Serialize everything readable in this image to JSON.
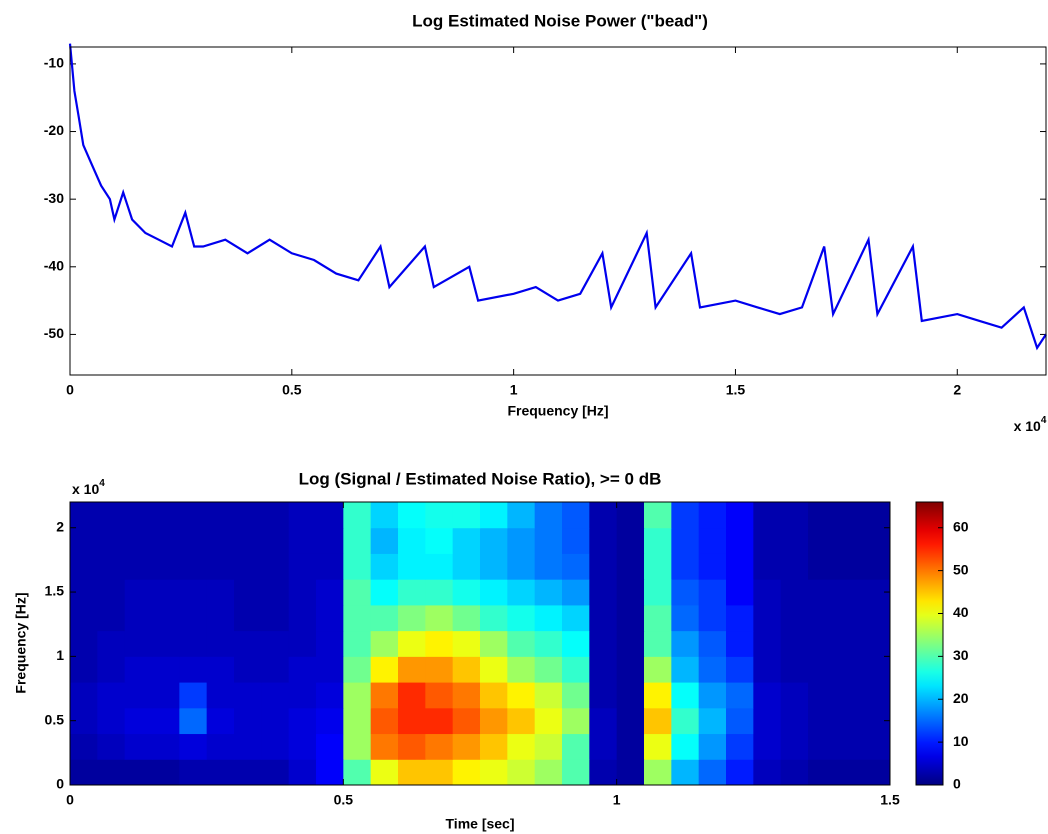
{
  "chart_data": [
    {
      "type": "line",
      "title": "Log Estimated Noise Power (\"bead\")",
      "xlabel": "Frequency [Hz]",
      "x_scale_label": {
        "base": "x 10",
        "exponent": "4"
      },
      "color": "#0000ee",
      "x": [
        0,
        0.01,
        0.02,
        0.03,
        0.05,
        0.07,
        0.09,
        0.1,
        0.12,
        0.14,
        0.17,
        0.2,
        0.23,
        0.26,
        0.28,
        0.3,
        0.35,
        0.4,
        0.45,
        0.5,
        0.55,
        0.6,
        0.65,
        0.7,
        0.72,
        0.8,
        0.82,
        0.9,
        0.92,
        1.0,
        1.05,
        1.1,
        1.15,
        1.2,
        1.22,
        1.3,
        1.32,
        1.4,
        1.42,
        1.5,
        1.55,
        1.6,
        1.65,
        1.7,
        1.72,
        1.8,
        1.82,
        1.9,
        1.92,
        2.0,
        2.05,
        2.1,
        2.15,
        2.18,
        2.2
      ],
      "values": [
        -7,
        -14,
        -18,
        -22,
        -25,
        -28,
        -30,
        -33,
        -29,
        -33,
        -35,
        -36,
        -37,
        -32,
        -37,
        -37,
        -36,
        -38,
        -36,
        -38,
        -39,
        -41,
        -42,
        -37,
        -43,
        -37,
        -43,
        -40,
        -45,
        -44,
        -43,
        -45,
        -44,
        -38,
        -46,
        -35,
        -46,
        -38,
        -46,
        -45,
        -46,
        -47,
        -46,
        -37,
        -47,
        -36,
        -47,
        -37,
        -48,
        -47,
        -48,
        -49,
        -46,
        -52,
        -50
      ],
      "xlim": [
        0,
        2.2
      ],
      "ylim": [
        -56,
        -7.5
      ],
      "xticks": [
        0,
        0.5,
        1,
        1.5,
        2
      ],
      "yticks": [
        -10,
        -20,
        -30,
        -40,
        -50
      ]
    },
    {
      "type": "heatmap",
      "title": "Log (Signal / Estimated Noise Ratio), >= 0 dB",
      "xlabel": "Time [sec]",
      "ylabel": "Frequency [Hz]",
      "y_scale_label": {
        "base": "x 10",
        "exponent": "4"
      },
      "colormap": "jet",
      "clim": [
        0,
        66
      ],
      "colorbar_ticks": [
        0,
        10,
        20,
        30,
        40,
        50,
        60
      ],
      "xbins": [
        0,
        0.05,
        0.1,
        0.15,
        0.2,
        0.25,
        0.3,
        0.35,
        0.4,
        0.45,
        0.5,
        0.55,
        0.6,
        0.65,
        0.7,
        0.75,
        0.8,
        0.85,
        0.9,
        0.95,
        1.0,
        1.05,
        1.1,
        1.15,
        1.2,
        1.25,
        1.3,
        1.35,
        1.4,
        1.45,
        1.5
      ],
      "ybins": [
        0,
        0.2,
        0.4,
        0.6,
        0.8,
        1.0,
        1.2,
        1.4,
        1.6,
        1.8,
        2.0,
        2.2
      ],
      "values": [
        [
          2,
          2,
          2,
          2,
          3,
          3,
          3,
          3,
          5,
          8,
          30,
          40,
          45,
          45,
          42,
          40,
          38,
          35,
          30,
          3,
          2,
          35,
          20,
          15,
          10,
          4,
          3,
          2,
          2,
          2
        ],
        [
          3,
          4,
          5,
          5,
          6,
          5,
          5,
          5,
          6,
          8,
          35,
          50,
          52,
          50,
          48,
          45,
          40,
          38,
          30,
          4,
          2,
          40,
          25,
          18,
          12,
          5,
          4,
          3,
          3,
          3
        ],
        [
          4,
          5,
          6,
          6,
          15,
          6,
          5,
          5,
          6,
          7,
          35,
          52,
          55,
          55,
          52,
          48,
          45,
          40,
          35,
          4,
          2,
          45,
          28,
          20,
          14,
          5,
          4,
          3,
          3,
          3
        ],
        [
          4,
          5,
          5,
          5,
          12,
          5,
          5,
          5,
          5,
          6,
          35,
          50,
          55,
          52,
          50,
          45,
          42,
          38,
          32,
          3,
          2,
          42,
          25,
          18,
          15,
          5,
          4,
          3,
          3,
          3
        ],
        [
          3,
          4,
          5,
          5,
          5,
          5,
          4,
          4,
          5,
          5,
          32,
          42,
          48,
          48,
          45,
          40,
          35,
          32,
          28,
          3,
          2,
          35,
          20,
          15,
          12,
          4,
          3,
          3,
          3,
          3
        ],
        [
          3,
          4,
          4,
          4,
          4,
          4,
          4,
          4,
          4,
          5,
          30,
          35,
          40,
          42,
          40,
          35,
          30,
          28,
          25,
          3,
          2,
          30,
          18,
          14,
          10,
          4,
          3,
          3,
          3,
          3
        ],
        [
          3,
          3,
          4,
          4,
          4,
          4,
          3,
          3,
          4,
          5,
          30,
          30,
          33,
          35,
          32,
          28,
          26,
          24,
          22,
          3,
          2,
          30,
          15,
          12,
          10,
          4,
          3,
          3,
          3,
          3
        ],
        [
          3,
          3,
          4,
          4,
          4,
          4,
          3,
          3,
          4,
          5,
          30,
          25,
          28,
          28,
          26,
          24,
          22,
          20,
          18,
          3,
          2,
          28,
          14,
          12,
          8,
          4,
          3,
          3,
          3,
          3
        ],
        [
          3,
          3,
          3,
          3,
          3,
          3,
          3,
          3,
          4,
          4,
          28,
          22,
          24,
          24,
          22,
          20,
          18,
          16,
          15,
          3,
          2,
          28,
          12,
          10,
          8,
          3,
          3,
          2,
          2,
          2
        ],
        [
          3,
          3,
          3,
          3,
          3,
          3,
          3,
          3,
          4,
          4,
          28,
          20,
          24,
          25,
          22,
          20,
          18,
          16,
          14,
          3,
          2,
          28,
          12,
          10,
          8,
          3,
          3,
          2,
          2,
          2
        ],
        [
          3,
          3,
          3,
          3,
          3,
          3,
          3,
          3,
          4,
          4,
          28,
          22,
          25,
          26,
          26,
          24,
          20,
          16,
          14,
          3,
          2,
          30,
          12,
          10,
          8,
          3,
          3,
          2,
          2,
          2
        ]
      ],
      "xlim": [
        0,
        1.5
      ],
      "ylim": [
        0,
        2.2
      ],
      "xticks": [
        0,
        0.5,
        1,
        1.5
      ],
      "yticks": [
        0,
        0.5,
        1,
        1.5,
        2
      ]
    }
  ]
}
